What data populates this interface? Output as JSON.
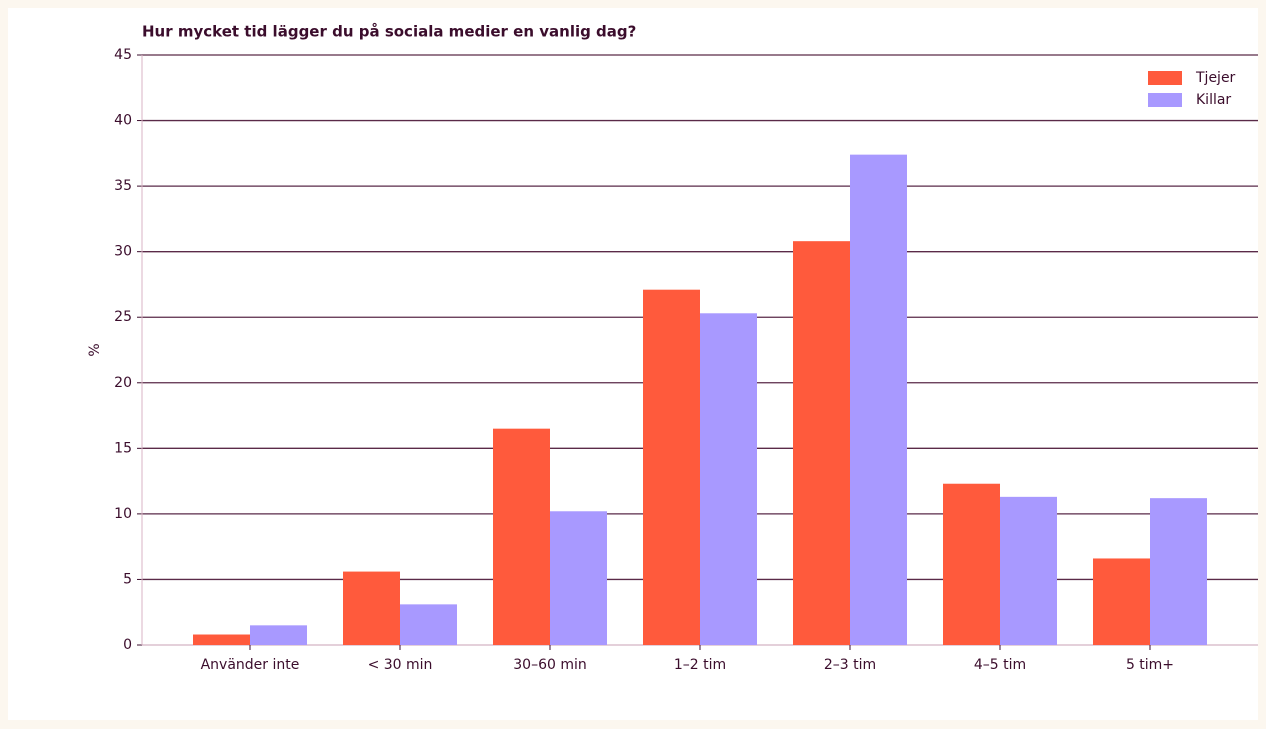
{
  "chart_data": {
    "type": "bar",
    "title": "Hur mycket tid lägger du på sociala medier en vanlig dag?",
    "ylabel": "%",
    "categories": [
      "Använder inte",
      "< 30 min",
      "30–60 min",
      "1–2 tim",
      "2–3 tim",
      "4–5 tim",
      "5 tim+"
    ],
    "series": [
      {
        "name": "Tjejer",
        "color": "#ff5a3c",
        "values": [
          0.8,
          5.6,
          16.5,
          27.1,
          30.8,
          12.3,
          6.6
        ]
      },
      {
        "name": "Killar",
        "color": "#a899ff",
        "values": [
          1.5,
          3.1,
          10.2,
          25.3,
          37.4,
          11.3,
          11.2
        ]
      }
    ],
    "ylim": [
      0,
      45
    ],
    "yticks": [
      0,
      5,
      10,
      15,
      20,
      25,
      30,
      35,
      40,
      45
    ],
    "grid": true,
    "legend": "upper right"
  }
}
